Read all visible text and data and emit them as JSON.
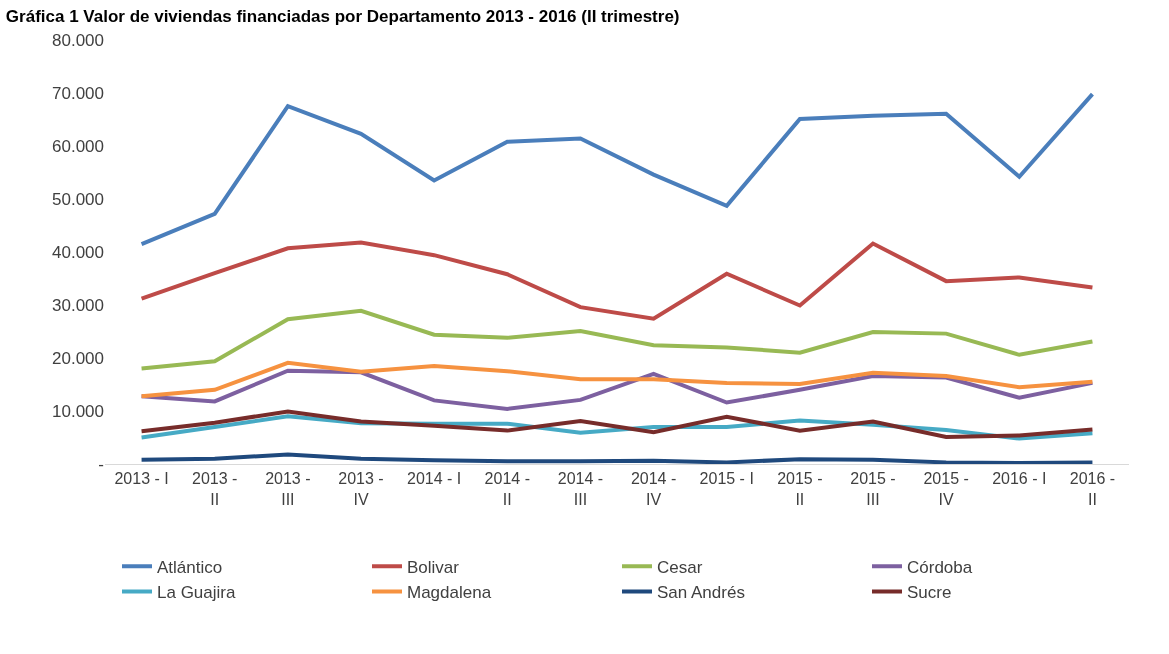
{
  "chart_data": {
    "type": "line",
    "title": "Gráfica 1 Valor de viviendas financiadas por Departamento 2013 - 2016 (II trimestre)",
    "categories": [
      "2013 - I",
      "2013 - II",
      "2013 - III",
      "2013 - IV",
      "2014 - I",
      "2014 - II",
      "2014 - III",
      "2014 - IV",
      "2015 - I",
      "2015 - II",
      "2015 - III",
      "2015 - IV",
      "2016 - I",
      "2016 - II"
    ],
    "series": [
      {
        "name": "Atlántico",
        "color": "#4a7ebb",
        "values": [
          41500,
          47200,
          67500,
          62300,
          53500,
          60800,
          61400,
          54600,
          48700,
          65100,
          65700,
          66100,
          54200,
          69800
        ]
      },
      {
        "name": "Bolivar",
        "color": "#be4b48",
        "values": [
          31200,
          36000,
          40700,
          41800,
          39400,
          35800,
          29600,
          27400,
          35900,
          29900,
          41600,
          34500,
          35200,
          33300
        ]
      },
      {
        "name": "Cesar",
        "color": "#98b954",
        "values": [
          18000,
          19400,
          27300,
          28900,
          24400,
          23800,
          25100,
          22400,
          22000,
          21000,
          24900,
          24600,
          20600,
          23100
        ]
      },
      {
        "name": "Córdoba",
        "color": "#7d60a0",
        "values": [
          12800,
          11800,
          17600,
          17300,
          12000,
          10400,
          12100,
          17000,
          11600,
          14000,
          16600,
          16300,
          12500,
          15300
        ]
      },
      {
        "name": "La Guajira",
        "color": "#46aac5",
        "values": [
          5000,
          7000,
          9000,
          7700,
          7600,
          7600,
          5900,
          7000,
          7000,
          8200,
          7400,
          6400,
          4800,
          5800
        ]
      },
      {
        "name": "Magdalena",
        "color": "#f69240",
        "values": [
          12800,
          14000,
          19100,
          17400,
          18500,
          17500,
          16000,
          16000,
          15300,
          15100,
          17200,
          16600,
          14500,
          15500
        ]
      },
      {
        "name": "San Andrés",
        "color": "#1f497d",
        "values": [
          800,
          1000,
          1800,
          1000,
          700,
          500,
          500,
          600,
          300,
          900,
          800,
          300,
          200,
          300
        ]
      },
      {
        "name": "Sucre",
        "color": "#772c2a",
        "values": [
          6200,
          7800,
          9900,
          8000,
          7200,
          6300,
          8100,
          6000,
          8900,
          6300,
          8000,
          5100,
          5400,
          6500
        ]
      }
    ],
    "ylim": [
      0,
      80000
    ],
    "yticks": [
      {
        "value": 0,
        "label": "-"
      },
      {
        "value": 10000,
        "label": "10.000"
      },
      {
        "value": 20000,
        "label": "20.000"
      },
      {
        "value": 30000,
        "label": "30.000"
      },
      {
        "value": 40000,
        "label": "40.000"
      },
      {
        "value": 50000,
        "label": "50.000"
      },
      {
        "value": 60000,
        "label": "60.000"
      },
      {
        "value": 70000,
        "label": "70.000"
      },
      {
        "value": 80000,
        "label": "80.000"
      }
    ],
    "grid": false,
    "legend": "bottom",
    "marker": "none",
    "line_style": "solid"
  }
}
